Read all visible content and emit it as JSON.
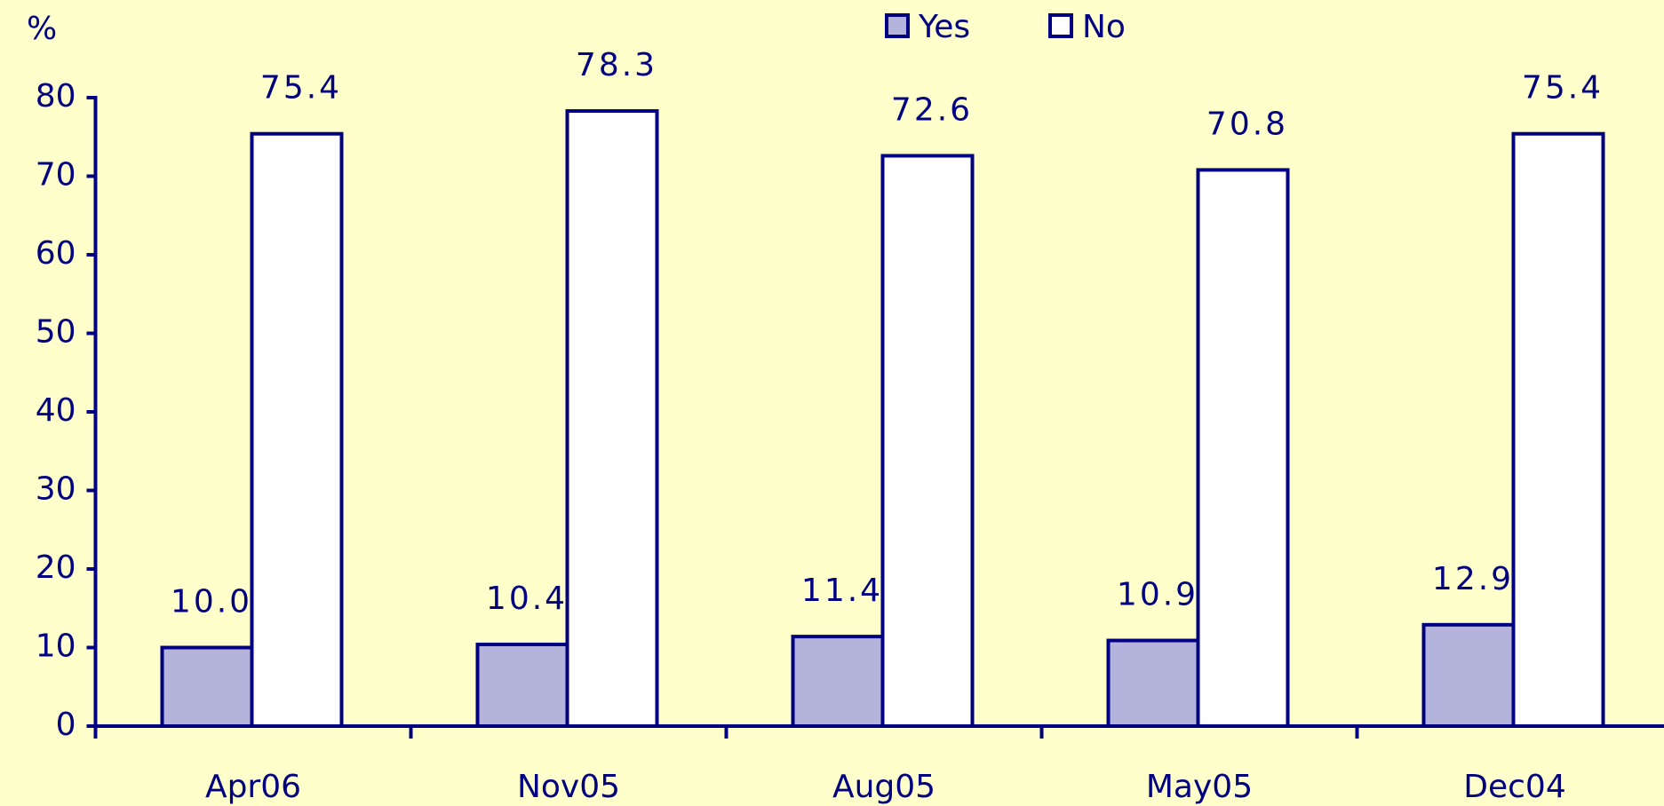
{
  "chart_data": {
    "type": "bar",
    "y_label": "%",
    "categories": [
      "Apr06",
      "Nov05",
      "Aug05",
      "May05",
      "Dec04"
    ],
    "series": [
      {
        "name": "Yes",
        "color": "#b3b3dc",
        "values": [
          10.0,
          10.4,
          11.4,
          10.9,
          12.9
        ],
        "value_labels": [
          "10.0",
          "10.4",
          "11.4",
          "10.9",
          "12.9"
        ]
      },
      {
        "name": "No",
        "color": "#ffffff",
        "values": [
          75.4,
          78.3,
          72.6,
          70.8,
          75.4
        ]
      }
    ],
    "ylim": [
      0,
      80
    ],
    "yticks": [
      0,
      10,
      20,
      30,
      40,
      50,
      60,
      70,
      80
    ],
    "grid": false,
    "legend": "top"
  }
}
